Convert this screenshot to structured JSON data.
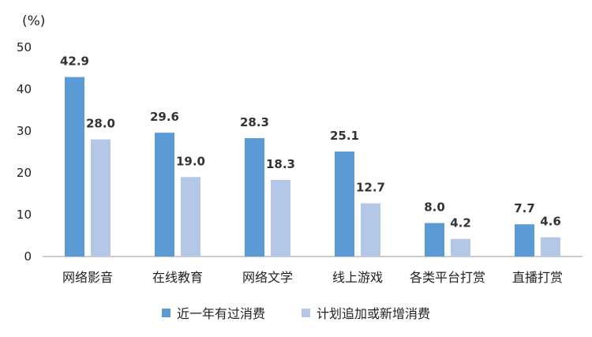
{
  "chart_data": {
    "type": "bar",
    "unit_label": "(%)",
    "categories": [
      "网络影音",
      "在线教育",
      "网络文学",
      "线上游戏",
      "各类平台打赏",
      "直播打赏"
    ],
    "series": [
      {
        "name": "近一年有过消费",
        "values": [
          42.9,
          29.6,
          28.3,
          25.1,
          8.0,
          7.7
        ],
        "color": "#5b9bd5"
      },
      {
        "name": "计划追加或新增消费",
        "values": [
          28.0,
          19.0,
          18.3,
          12.7,
          4.2,
          4.6
        ],
        "color": "#b4c7e7"
      }
    ],
    "ylim": [
      0,
      50
    ],
    "yticks": [
      0,
      10,
      20,
      30,
      40,
      50
    ],
    "grid": false,
    "legend": "bottom"
  }
}
